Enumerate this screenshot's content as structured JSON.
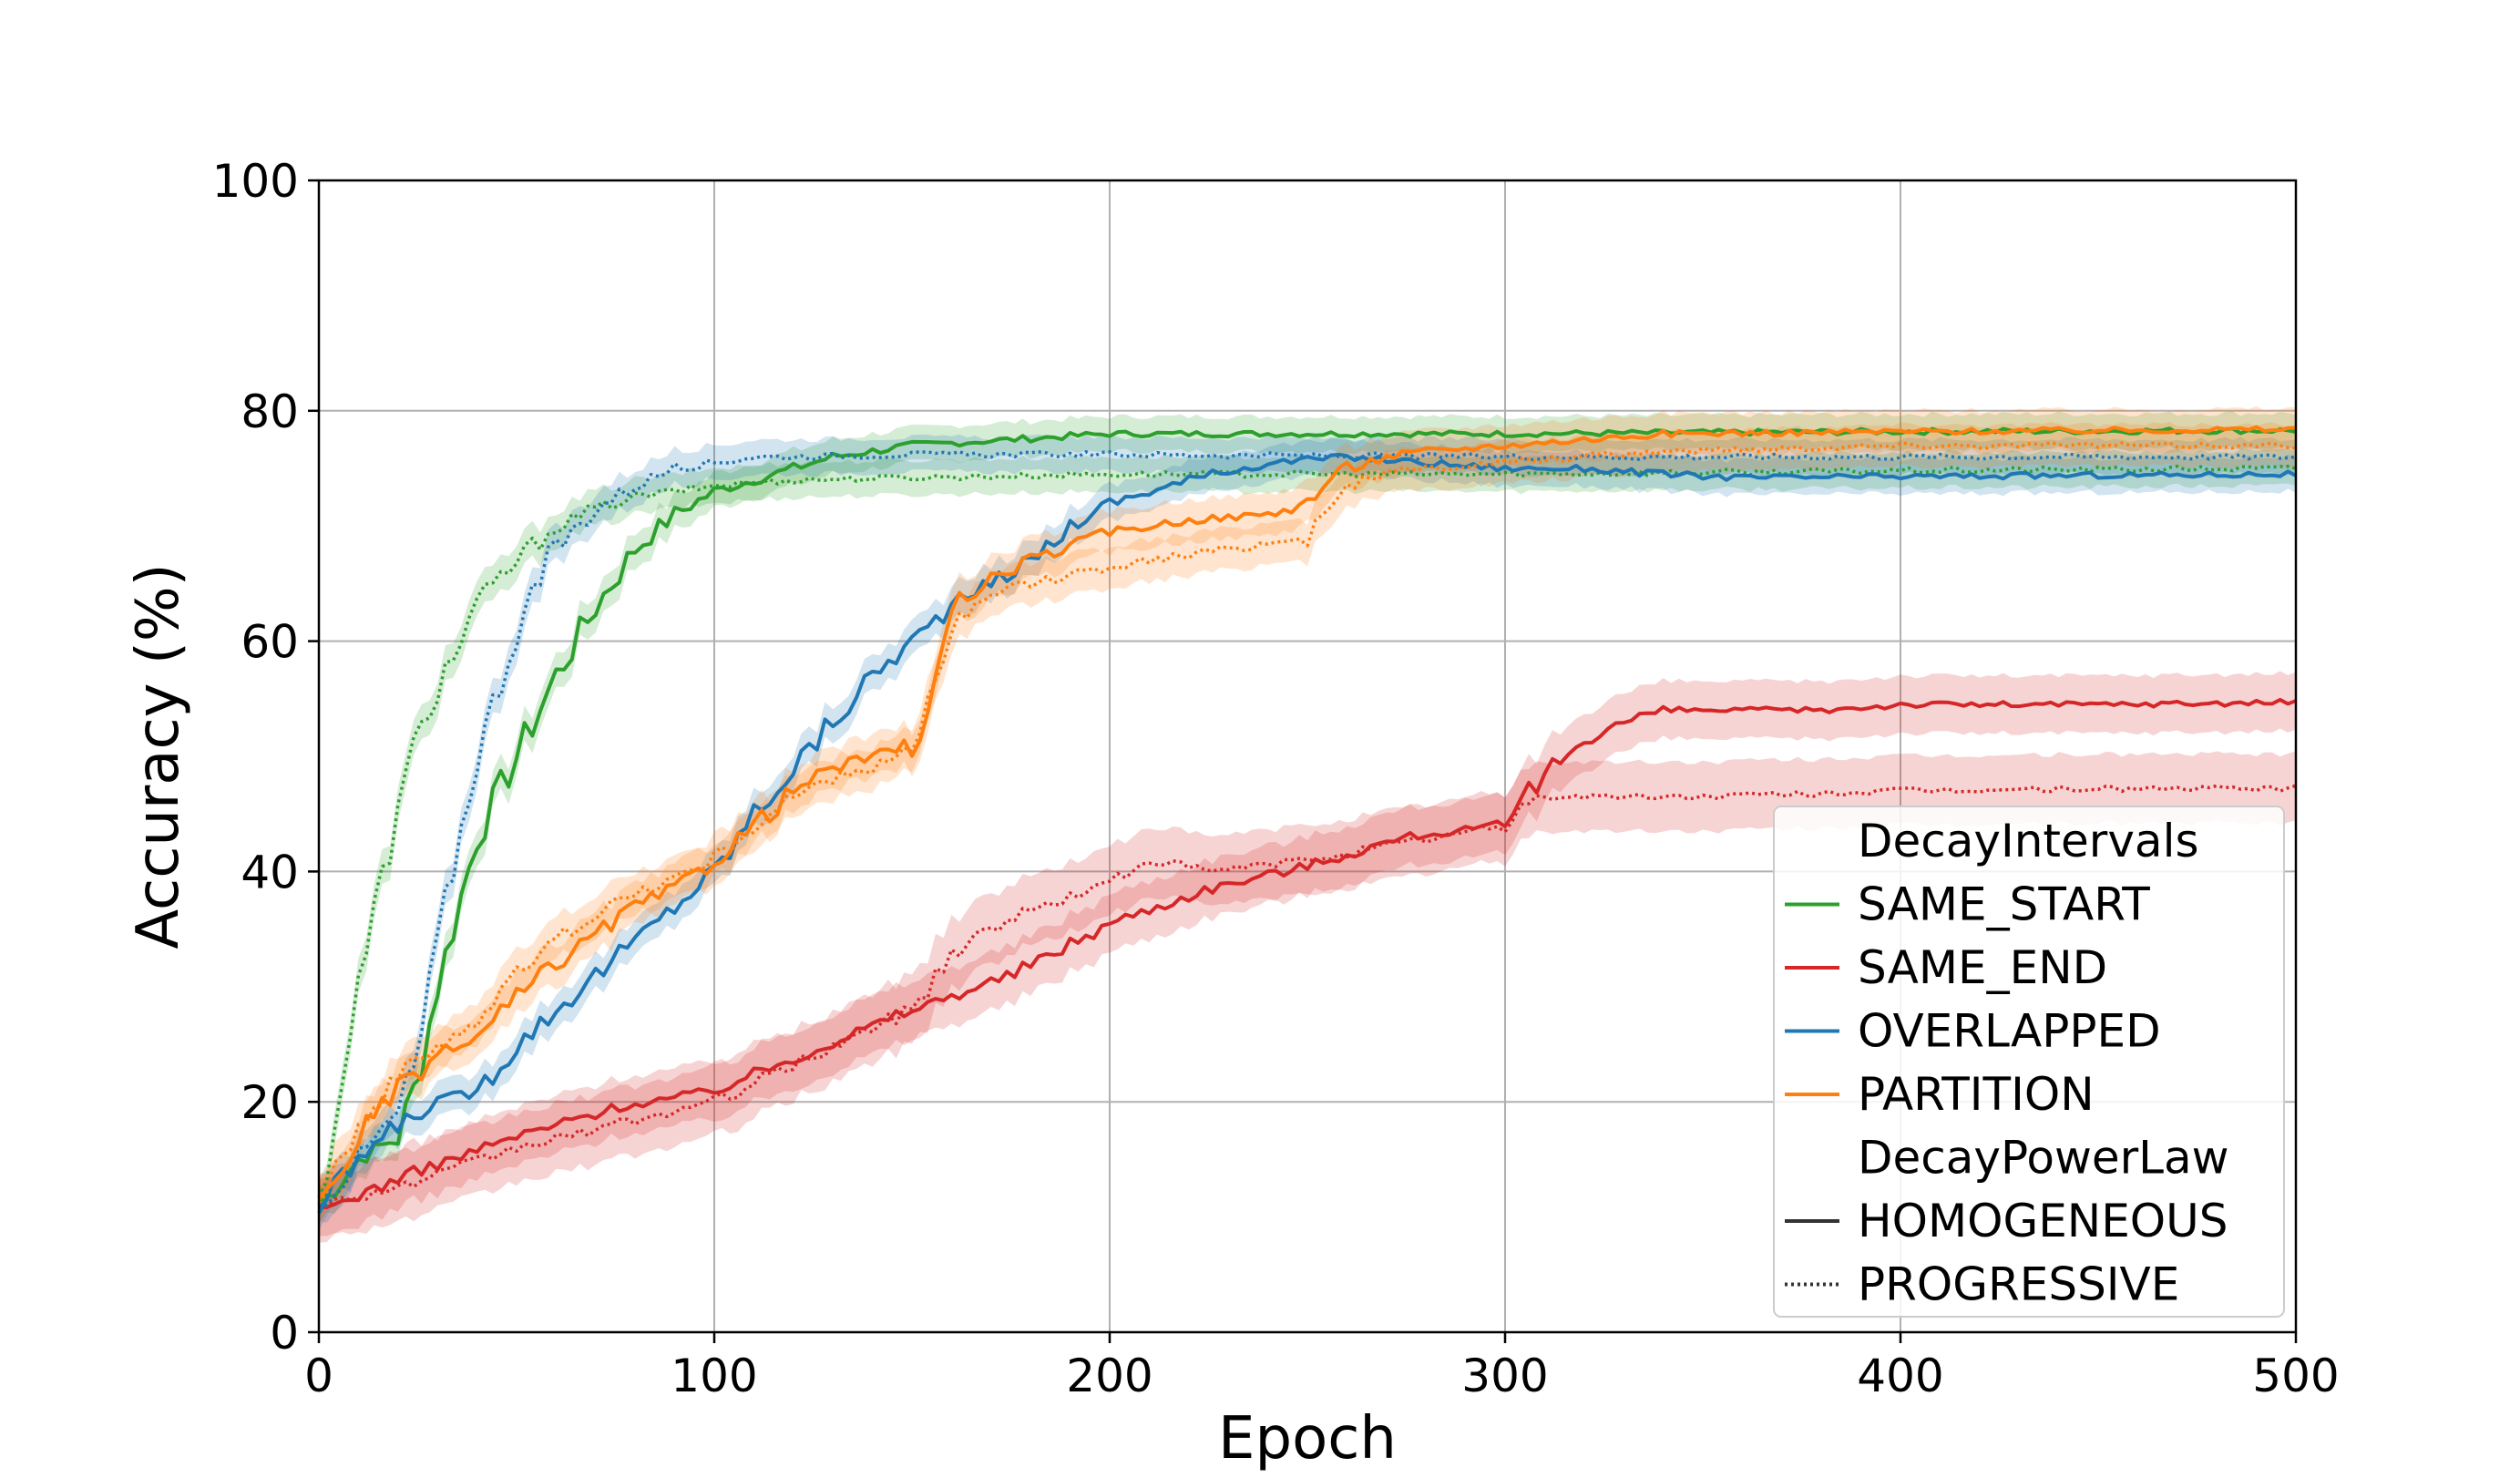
{
  "chart_data": {
    "type": "line",
    "title": "",
    "xlabel": "Epoch",
    "ylabel": "Accuracy (%)",
    "xlim": [
      0,
      500
    ],
    "ylim": [
      0,
      100
    ],
    "xticks": [
      0,
      100,
      200,
      300,
      400,
      500
    ],
    "yticks": [
      0,
      20,
      40,
      60,
      80,
      100
    ],
    "grid": true,
    "legend": {
      "placement": "lower right",
      "groups": [
        {
          "title": "DecayIntervals",
          "entries": [
            {
              "label": "SAME_START",
              "color": "#2ca02c"
            },
            {
              "label": "SAME_END",
              "color": "#d62728"
            },
            {
              "label": "OVERLAPPED",
              "color": "#1f77b4"
            },
            {
              "label": "PARTITION",
              "color": "#ff7f0e"
            }
          ]
        },
        {
          "title": "DecayPowerLaw",
          "entries": [
            {
              "label": "HOMOGENEOUS",
              "style": "solid",
              "color": "#333333"
            },
            {
              "label": "PROGRESSIVE",
              "style": "dotted",
              "color": "#333333"
            }
          ]
        }
      ]
    },
    "series": [
      {
        "name": "SAME_START",
        "style": "HOMOGENEOUS",
        "color": "#2ca02c",
        "x": [
          0,
          10,
          20,
          25,
          30,
          40,
          50,
          60,
          70,
          80,
          90,
          100,
          110,
          120,
          130,
          150,
          175,
          200,
          250,
          300,
          400,
          500
        ],
        "y": [
          11,
          15,
          17,
          22,
          30,
          43,
          50,
          57,
          63,
          68,
          71,
          73,
          74,
          75,
          76,
          77,
          77.5,
          78,
          78,
          78,
          78.2,
          78.3
        ],
        "band": 1.5
      },
      {
        "name": "SAME_START",
        "style": "PROGRESSIVE",
        "color": "#2ca02c",
        "x": [
          0,
          5,
          10,
          15,
          20,
          25,
          30,
          40,
          50,
          60,
          70,
          80,
          90,
          100,
          120,
          150,
          200,
          300,
          400,
          500
        ],
        "y": [
          11,
          20,
          30,
          38,
          45,
          52,
          56,
          63,
          67,
          70,
          71.5,
          72.5,
          73,
          73.5,
          74,
          74.2,
          74.5,
          74.5,
          74.8,
          75
        ],
        "band": 1.5
      },
      {
        "name": "SAME_END",
        "style": "HOMOGENEOUS",
        "color": "#d62728",
        "x": [
          0,
          25,
          50,
          75,
          100,
          125,
          150,
          175,
          200,
          225,
          250,
          275,
          300,
          305,
          310,
          320,
          330,
          340,
          360,
          380,
          400,
          450,
          500
        ],
        "y": [
          10.5,
          14,
          17,
          19.5,
          21,
          24.5,
          28,
          31,
          35.5,
          38.5,
          40.5,
          43,
          44,
          46,
          48.5,
          51.5,
          53,
          54,
          54,
          54,
          54.5,
          54.5,
          54.7
        ],
        "band": 2.5
      },
      {
        "name": "SAME_END",
        "style": "PROGRESSIVE",
        "color": "#d62728",
        "x": [
          0,
          25,
          50,
          75,
          100,
          125,
          150,
          160,
          175,
          200,
          210,
          225,
          250,
          275,
          300,
          305,
          310,
          350,
          400,
          450,
          500
        ],
        "y": [
          11,
          13,
          16,
          18,
          20,
          24,
          28,
          33,
          36,
          39,
          41,
          40,
          41,
          42.5,
          44,
          46,
          46.5,
          46.5,
          47,
          47.2,
          47.2
        ],
        "band": 3
      },
      {
        "name": "OVERLAPPED",
        "style": "HOMOGENEOUS",
        "color": "#1f77b4",
        "x": [
          0,
          10,
          20,
          30,
          40,
          50,
          60,
          70,
          80,
          90,
          100,
          110,
          120,
          130,
          140,
          150,
          160,
          170,
          180,
          190,
          200,
          220,
          240,
          260,
          280,
          300,
          320,
          340,
          360,
          400,
          450,
          500
        ],
        "y": [
          10.5,
          15,
          18,
          20,
          21,
          25,
          28,
          31,
          34,
          37,
          40,
          45,
          49,
          53,
          57,
          60,
          63,
          65,
          67,
          70,
          72,
          74,
          75.5,
          76,
          75.5,
          75,
          75,
          74.5,
          74.2,
          74.3,
          74.4,
          74.5
        ],
        "band": 1.5
      },
      {
        "name": "OVERLAPPED",
        "style": "PROGRESSIVE",
        "color": "#1f77b4",
        "x": [
          0,
          10,
          20,
          25,
          30,
          40,
          50,
          60,
          70,
          80,
          90,
          100,
          110,
          120,
          150,
          200,
          300,
          400,
          500
        ],
        "y": [
          11,
          15,
          19,
          24,
          34,
          50,
          61,
          68,
          71.5,
          73.5,
          75,
          75.5,
          76,
          76,
          76.2,
          76.2,
          76,
          76,
          76
        ],
        "band": 1.5
      },
      {
        "name": "PARTITION",
        "style": "HOMOGENEOUS",
        "color": "#ff7f0e",
        "x": [
          0,
          10,
          20,
          30,
          40,
          50,
          60,
          70,
          80,
          90,
          100,
          110,
          120,
          130,
          140,
          150,
          155,
          160,
          165,
          170,
          180,
          200,
          220,
          240,
          250,
          255,
          260,
          270,
          280,
          300,
          320,
          340,
          400,
          500
        ],
        "y": [
          11,
          17,
          21,
          24,
          25.5,
          29,
          32,
          34.5,
          37,
          38.5,
          41,
          44,
          47,
          49,
          50,
          51,
          55,
          62,
          64,
          65.5,
          67,
          69.5,
          70.5,
          71,
          72,
          74,
          75,
          76,
          76.5,
          77,
          77.5,
          78,
          78.2,
          78.4
        ],
        "band": 1.8
      },
      {
        "name": "PARTITION",
        "style": "PROGRESSIVE",
        "color": "#ff7f0e",
        "x": [
          0,
          10,
          20,
          30,
          40,
          50,
          60,
          70,
          80,
          90,
          100,
          110,
          120,
          130,
          140,
          150,
          155,
          160,
          165,
          170,
          180,
          200,
          220,
          240,
          250,
          255,
          260,
          270,
          280,
          300,
          320,
          340,
          400,
          500
        ],
        "y": [
          12,
          18,
          22,
          25,
          27,
          31,
          34,
          36.5,
          38,
          39.5,
          41,
          44,
          46.5,
          48,
          49,
          51,
          55,
          60,
          62.5,
          64,
          65,
          66.5,
          67.5,
          68.5,
          69,
          72,
          73.5,
          74.5,
          75,
          75.5,
          76,
          76.5,
          77,
          77
        ],
        "band": 1.8
      }
    ]
  }
}
